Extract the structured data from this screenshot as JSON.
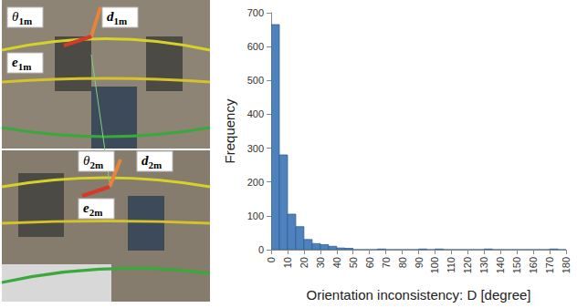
{
  "chart_data": {
    "type": "histogram",
    "bins": [
      0,
      5,
      10,
      15,
      20,
      25,
      30,
      35,
      40,
      45,
      50,
      55,
      60,
      65,
      70,
      75,
      80,
      85,
      90,
      95,
      100,
      105,
      110,
      115,
      120,
      125,
      130,
      135,
      140,
      145,
      150,
      155,
      160,
      165,
      170,
      175,
      180
    ],
    "counts": [
      665,
      280,
      105,
      68,
      30,
      18,
      15,
      10,
      5,
      4,
      0,
      0,
      0,
      2,
      0,
      0,
      0,
      0,
      2,
      0,
      2,
      0,
      0,
      0,
      0,
      0,
      2,
      0,
      0,
      0,
      0,
      0,
      0,
      0,
      2,
      0
    ],
    "color": "#4f81bd",
    "xlabel": "Orientation inconsistency: D [degree]",
    "ylabel": "Frequency",
    "xlim": [
      0,
      180
    ],
    "ylim": [
      0,
      700
    ],
    "xticks": [
      0,
      10,
      20,
      30,
      40,
      50,
      60,
      70,
      80,
      90,
      100,
      110,
      120,
      130,
      140,
      150,
      160,
      170,
      180
    ],
    "yticks": [
      0,
      100,
      200,
      300,
      400,
      500,
      600,
      700
    ],
    "grid": false,
    "annotations": [
      "θ1m",
      "d1m",
      "e1m",
      "θ2m",
      "d2m",
      "e2m"
    ]
  }
}
